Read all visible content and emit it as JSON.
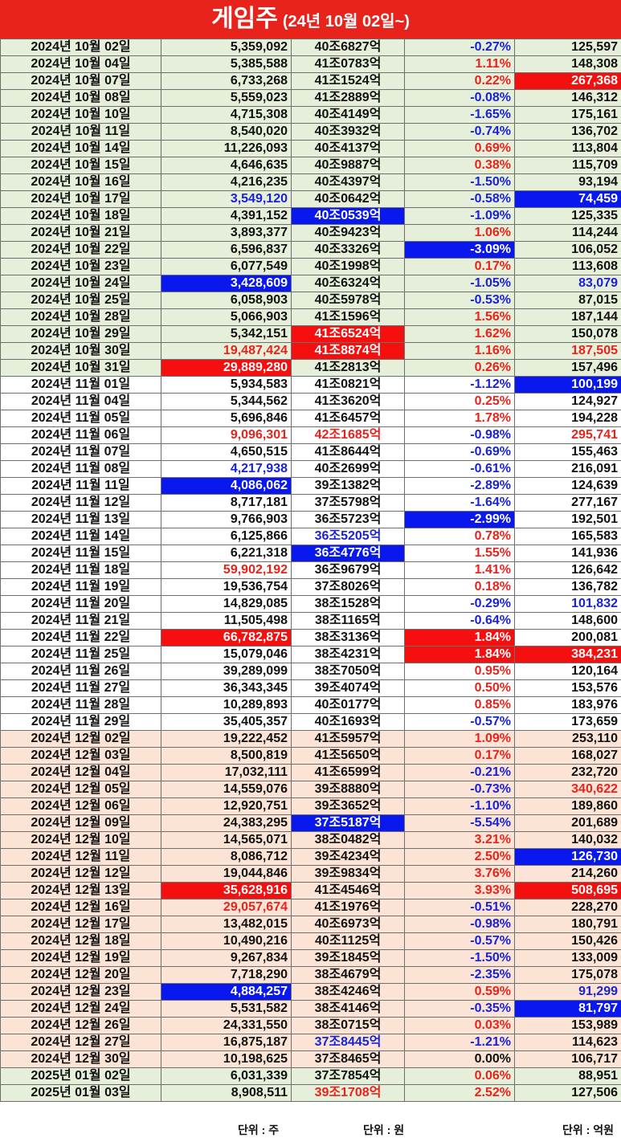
{
  "title": {
    "main": "게임주",
    "sub": "(24년 10월 02일~)"
  },
  "units": {
    "volume": "단위 : 주",
    "cap": "단위 : 원",
    "value": "단위 : 억원"
  },
  "colors": {
    "red": "#e8231c",
    "blue": "#1a22d6",
    "green_bg": "#e6efda",
    "peach_bg": "#fbe4d5"
  },
  "rows": [
    {
      "date": "2024년 10월 02일",
      "vol": "5,359,092",
      "cap": "40조6827억",
      "chg": "-0.27%",
      "val": "125,597",
      "group": "g-green",
      "vc": "",
      "cc": "",
      "pc": "blue-text",
      "tc": ""
    },
    {
      "date": "2024년 10월 04일",
      "vol": "5,385,588",
      "cap": "41조0783억",
      "chg": "1.11%",
      "val": "148,308",
      "group": "g-green",
      "vc": "",
      "cc": "",
      "pc": "red-text",
      "tc": ""
    },
    {
      "date": "2024년 10월 07일",
      "vol": "6,733,268",
      "cap": "41조1524억",
      "chg": "0.22%",
      "val": "267,368",
      "group": "g-green",
      "vc": "",
      "cc": "",
      "pc": "red-text",
      "tc": "hl-red"
    },
    {
      "date": "2024년 10월 08일",
      "vol": "5,559,023",
      "cap": "41조2889억",
      "chg": "-0.08%",
      "val": "146,312",
      "group": "g-green",
      "vc": "",
      "cc": "",
      "pc": "blue-text",
      "tc": ""
    },
    {
      "date": "2024년 10월 10일",
      "vol": "4,715,308",
      "cap": "40조4149억",
      "chg": "-1.65%",
      "val": "175,161",
      "group": "g-green",
      "vc": "",
      "cc": "",
      "pc": "blue-text",
      "tc": ""
    },
    {
      "date": "2024년 10월 11일",
      "vol": "8,540,020",
      "cap": "40조3932억",
      "chg": "-0.74%",
      "val": "136,702",
      "group": "g-green",
      "vc": "",
      "cc": "",
      "pc": "blue-text",
      "tc": ""
    },
    {
      "date": "2024년 10월 14일",
      "vol": "11,226,093",
      "cap": "40조4137억",
      "chg": "0.69%",
      "val": "113,804",
      "group": "g-green",
      "vc": "",
      "cc": "",
      "pc": "red-text",
      "tc": ""
    },
    {
      "date": "2024년 10월 15일",
      "vol": "4,646,635",
      "cap": "40조9887억",
      "chg": "0.38%",
      "val": "115,709",
      "group": "g-green",
      "vc": "",
      "cc": "",
      "pc": "red-text",
      "tc": ""
    },
    {
      "date": "2024년 10월 16일",
      "vol": "4,216,235",
      "cap": "40조4397억",
      "chg": "-1.50%",
      "val": "93,194",
      "group": "g-green",
      "vc": "",
      "cc": "",
      "pc": "blue-text",
      "tc": ""
    },
    {
      "date": "2024년 10월 17일",
      "vol": "3,549,120",
      "cap": "40조0642억",
      "chg": "-0.58%",
      "val": "74,459",
      "group": "g-green",
      "vc": "blue-text",
      "cc": "",
      "pc": "blue-text",
      "tc": "hl-blue"
    },
    {
      "date": "2024년 10월 18일",
      "vol": "4,391,152",
      "cap": "40조0539억",
      "chg": "-1.09%",
      "val": "125,335",
      "group": "g-green",
      "vc": "",
      "cc": "hl-blue",
      "pc": "blue-text",
      "tc": ""
    },
    {
      "date": "2024년 10월 21일",
      "vol": "3,893,377",
      "cap": "40조9423억",
      "chg": "1.06%",
      "val": "114,244",
      "group": "g-green",
      "vc": "",
      "cc": "",
      "pc": "red-text",
      "tc": ""
    },
    {
      "date": "2024년 10월 22일",
      "vol": "6,596,837",
      "cap": "40조3326억",
      "chg": "-3.09%",
      "val": "106,052",
      "group": "g-green",
      "vc": "",
      "cc": "",
      "pc": "hl-blue",
      "tc": ""
    },
    {
      "date": "2024년 10월 23일",
      "vol": "6,077,549",
      "cap": "40조1998억",
      "chg": "0.17%",
      "val": "113,608",
      "group": "g-green",
      "vc": "",
      "cc": "",
      "pc": "red-text",
      "tc": ""
    },
    {
      "date": "2024년 10월 24일",
      "vol": "3,428,609",
      "cap": "40조6324억",
      "chg": "-1.05%",
      "val": "83,079",
      "group": "g-green",
      "vc": "hl-blue",
      "cc": "",
      "pc": "blue-text",
      "tc": "blue-text"
    },
    {
      "date": "2024년 10월 25일",
      "vol": "6,058,903",
      "cap": "40조5978억",
      "chg": "-0.53%",
      "val": "87,015",
      "group": "g-green",
      "vc": "",
      "cc": "",
      "pc": "blue-text",
      "tc": ""
    },
    {
      "date": "2024년 10월 28일",
      "vol": "5,066,903",
      "cap": "41조1596억",
      "chg": "1.56%",
      "val": "187,144",
      "group": "g-green",
      "vc": "",
      "cc": "",
      "pc": "red-text",
      "tc": ""
    },
    {
      "date": "2024년 10월 29일",
      "vol": "5,342,151",
      "cap": "41조6524억",
      "chg": "1.62%",
      "val": "150,078",
      "group": "g-green",
      "vc": "",
      "cc": "hl-red",
      "pc": "red-text",
      "tc": ""
    },
    {
      "date": "2024년 10월 30일",
      "vol": "19,487,424",
      "cap": "41조8874억",
      "chg": "1.16%",
      "val": "187,505",
      "group": "g-green",
      "vc": "red-text",
      "cc": "hl-red",
      "pc": "red-text",
      "tc": "red-text"
    },
    {
      "date": "2024년 10월 31일",
      "vol": "29,889,280",
      "cap": "41조2813억",
      "chg": "0.26%",
      "val": "157,496",
      "group": "g-green",
      "vc": "hl-red",
      "cc": "",
      "pc": "red-text",
      "tc": ""
    },
    {
      "date": "2024년 11월 01일",
      "vol": "5,934,583",
      "cap": "41조0821억",
      "chg": "-1.12%",
      "val": "100,199",
      "group": "g-white",
      "vc": "",
      "cc": "",
      "pc": "blue-text",
      "tc": "hl-blue"
    },
    {
      "date": "2024년 11월 04일",
      "vol": "5,344,562",
      "cap": "41조3620억",
      "chg": "0.25%",
      "val": "124,927",
      "group": "g-white",
      "vc": "",
      "cc": "",
      "pc": "red-text",
      "tc": ""
    },
    {
      "date": "2024년 11월 05일",
      "vol": "5,696,846",
      "cap": "41조6457억",
      "chg": "1.78%",
      "val": "194,228",
      "group": "g-white",
      "vc": "",
      "cc": "",
      "pc": "red-text",
      "tc": ""
    },
    {
      "date": "2024년 11월 06일",
      "vol": "9,096,301",
      "cap": "42조1685억",
      "chg": "-0.98%",
      "val": "295,741",
      "group": "g-white",
      "vc": "red-text",
      "cc": "red-text",
      "pc": "blue-text",
      "tc": "red-text"
    },
    {
      "date": "2024년 11월 07일",
      "vol": "4,650,515",
      "cap": "41조8644억",
      "chg": "-0.69%",
      "val": "155,463",
      "group": "g-white",
      "vc": "",
      "cc": "",
      "pc": "blue-text",
      "tc": ""
    },
    {
      "date": "2024년 11월 08일",
      "vol": "4,217,938",
      "cap": "40조2699억",
      "chg": "-0.61%",
      "val": "216,091",
      "group": "g-white",
      "vc": "blue-text",
      "cc": "",
      "pc": "blue-text",
      "tc": ""
    },
    {
      "date": "2024년 11월 11일",
      "vol": "4,086,062",
      "cap": "39조1382억",
      "chg": "-2.89%",
      "val": "124,639",
      "group": "g-white",
      "vc": "hl-blue",
      "cc": "",
      "pc": "blue-text",
      "tc": ""
    },
    {
      "date": "2024년 11월 12일",
      "vol": "8,717,181",
      "cap": "37조5798억",
      "chg": "-1.64%",
      "val": "277,167",
      "group": "g-white",
      "vc": "",
      "cc": "",
      "pc": "blue-text",
      "tc": ""
    },
    {
      "date": "2024년 11월 13일",
      "vol": "9,766,903",
      "cap": "36조5723억",
      "chg": "-2.99%",
      "val": "192,501",
      "group": "g-white",
      "vc": "",
      "cc": "",
      "pc": "hl-blue",
      "tc": ""
    },
    {
      "date": "2024년 11월 14일",
      "vol": "6,125,866",
      "cap": "36조5205억",
      "chg": "0.78%",
      "val": "165,583",
      "group": "g-white",
      "vc": "",
      "cc": "blue-text",
      "pc": "red-text",
      "tc": ""
    },
    {
      "date": "2024년 11월 15일",
      "vol": "6,221,318",
      "cap": "36조4776억",
      "chg": "1.55%",
      "val": "141,936",
      "group": "g-white",
      "vc": "",
      "cc": "hl-blue",
      "pc": "red-text",
      "tc": ""
    },
    {
      "date": "2024년 11월 18일",
      "vol": "59,902,192",
      "cap": "36조9679억",
      "chg": "1.41%",
      "val": "126,642",
      "group": "g-white",
      "vc": "red-text",
      "cc": "",
      "pc": "red-text",
      "tc": ""
    },
    {
      "date": "2024년 11월 19일",
      "vol": "19,536,754",
      "cap": "37조8026억",
      "chg": "0.18%",
      "val": "136,782",
      "group": "g-white",
      "vc": "",
      "cc": "",
      "pc": "red-text",
      "tc": ""
    },
    {
      "date": "2024년 11월 20일",
      "vol": "14,829,085",
      "cap": "38조1528억",
      "chg": "-0.29%",
      "val": "101,832",
      "group": "g-white",
      "vc": "",
      "cc": "",
      "pc": "blue-text",
      "tc": "blue-text"
    },
    {
      "date": "2024년 11월 21일",
      "vol": "11,505,498",
      "cap": "38조1165억",
      "chg": "-0.64%",
      "val": "148,600",
      "group": "g-white",
      "vc": "",
      "cc": "",
      "pc": "blue-text",
      "tc": ""
    },
    {
      "date": "2024년 11월 22일",
      "vol": "66,782,875",
      "cap": "38조3136억",
      "chg": "1.84%",
      "val": "200,081",
      "group": "g-white",
      "vc": "hl-red",
      "cc": "",
      "pc": "hl-red",
      "tc": ""
    },
    {
      "date": "2024년 11월 25일",
      "vol": "15,079,046",
      "cap": "38조4231억",
      "chg": "1.84%",
      "val": "384,231",
      "group": "g-white",
      "vc": "",
      "cc": "",
      "pc": "hl-red",
      "tc": "hl-red"
    },
    {
      "date": "2024년 11월 26일",
      "vol": "39,289,099",
      "cap": "38조7050억",
      "chg": "0.95%",
      "val": "120,164",
      "group": "g-white",
      "vc": "",
      "cc": "",
      "pc": "red-text",
      "tc": ""
    },
    {
      "date": "2024년 11월 27일",
      "vol": "36,343,345",
      "cap": "39조4074억",
      "chg": "0.50%",
      "val": "153,576",
      "group": "g-white",
      "vc": "",
      "cc": "",
      "pc": "red-text",
      "tc": ""
    },
    {
      "date": "2024년 11월 28일",
      "vol": "10,289,893",
      "cap": "40조0177억",
      "chg": "0.85%",
      "val": "183,976",
      "group": "g-white",
      "vc": "",
      "cc": "",
      "pc": "red-text",
      "tc": ""
    },
    {
      "date": "2024년 11월 29일",
      "vol": "35,405,357",
      "cap": "40조1693억",
      "chg": "-0.57%",
      "val": "173,659",
      "group": "g-white",
      "vc": "",
      "cc": "",
      "pc": "blue-text",
      "tc": ""
    },
    {
      "date": "2024년 12월 02일",
      "vol": "19,222,452",
      "cap": "41조5957억",
      "chg": "1.09%",
      "val": "253,110",
      "group": "g-peach",
      "vc": "",
      "cc": "",
      "pc": "red-text",
      "tc": ""
    },
    {
      "date": "2024년 12월 03일",
      "vol": "8,500,819",
      "cap": "41조5650억",
      "chg": "0.17%",
      "val": "168,027",
      "group": "g-peach",
      "vc": "",
      "cc": "",
      "pc": "red-text",
      "tc": ""
    },
    {
      "date": "2024년 12월 04일",
      "vol": "17,032,111",
      "cap": "41조6599억",
      "chg": "-0.21%",
      "val": "232,720",
      "group": "g-peach",
      "vc": "",
      "cc": "",
      "pc": "blue-text",
      "tc": ""
    },
    {
      "date": "2024년 12월 05일",
      "vol": "14,559,076",
      "cap": "39조8880억",
      "chg": "-0.73%",
      "val": "340,622",
      "group": "g-peach",
      "vc": "",
      "cc": "",
      "pc": "blue-text",
      "tc": "red-text"
    },
    {
      "date": "2024년 12월 06일",
      "vol": "12,920,751",
      "cap": "39조3652억",
      "chg": "-1.10%",
      "val": "189,860",
      "group": "g-peach",
      "vc": "",
      "cc": "",
      "pc": "blue-text",
      "tc": ""
    },
    {
      "date": "2024년 12월 09일",
      "vol": "24,383,295",
      "cap": "37조5187억",
      "chg": "-5.54%",
      "val": "201,689",
      "group": "g-peach",
      "vc": "",
      "cc": "hl-blue",
      "pc": "blue-text",
      "tc": ""
    },
    {
      "date": "2024년 12월 10일",
      "vol": "14,565,071",
      "cap": "38조0482억",
      "chg": "3.21%",
      "val": "140,032",
      "group": "g-peach",
      "vc": "",
      "cc": "",
      "pc": "red-text",
      "tc": ""
    },
    {
      "date": "2024년 12월 11일",
      "vol": "8,086,712",
      "cap": "39조4234억",
      "chg": "2.50%",
      "val": "126,730",
      "group": "g-peach",
      "vc": "",
      "cc": "",
      "pc": "red-text",
      "tc": "hl-blue"
    },
    {
      "date": "2024년 12월 12일",
      "vol": "19,044,846",
      "cap": "39조9834억",
      "chg": "3.76%",
      "val": "214,260",
      "group": "g-peach",
      "vc": "",
      "cc": "",
      "pc": "red-text",
      "tc": ""
    },
    {
      "date": "2024년 12월 13일",
      "vol": "35,628,916",
      "cap": "41조4546억",
      "chg": "3.93%",
      "val": "508,695",
      "group": "g-peach",
      "vc": "hl-red",
      "cc": "",
      "pc": "red-text",
      "tc": "hl-red"
    },
    {
      "date": "2024년 12월 16일",
      "vol": "29,057,674",
      "cap": "41조1976억",
      "chg": "-0.51%",
      "val": "228,270",
      "group": "g-peach",
      "vc": "red-text",
      "cc": "",
      "pc": "blue-text",
      "tc": ""
    },
    {
      "date": "2024년 12월 17일",
      "vol": "13,482,015",
      "cap": "40조6973억",
      "chg": "-0.98%",
      "val": "180,791",
      "group": "g-peach",
      "vc": "",
      "cc": "",
      "pc": "blue-text",
      "tc": ""
    },
    {
      "date": "2024년 12월 18일",
      "vol": "10,490,216",
      "cap": "40조1125억",
      "chg": "-0.57%",
      "val": "150,426",
      "group": "g-peach",
      "vc": "",
      "cc": "",
      "pc": "blue-text",
      "tc": ""
    },
    {
      "date": "2024년 12월 19일",
      "vol": "9,267,834",
      "cap": "39조1845억",
      "chg": "-1.50%",
      "val": "133,009",
      "group": "g-peach",
      "vc": "",
      "cc": "",
      "pc": "blue-text",
      "tc": ""
    },
    {
      "date": "2024년 12월 20일",
      "vol": "7,718,290",
      "cap": "38조4679억",
      "chg": "-2.35%",
      "val": "175,078",
      "group": "g-peach",
      "vc": "",
      "cc": "",
      "pc": "blue-text",
      "tc": ""
    },
    {
      "date": "2024년 12월 23일",
      "vol": "4,884,257",
      "cap": "38조4246억",
      "chg": "0.59%",
      "val": "91,299",
      "group": "g-peach",
      "vc": "hl-blue",
      "cc": "",
      "pc": "red-text",
      "tc": "blue-text"
    },
    {
      "date": "2024년 12월 24일",
      "vol": "5,531,582",
      "cap": "38조4146억",
      "chg": "-0.35%",
      "val": "81,797",
      "group": "g-peach",
      "vc": "",
      "cc": "",
      "pc": "blue-text",
      "tc": "hl-blue"
    },
    {
      "date": "2024년 12월 26일",
      "vol": "24,331,550",
      "cap": "38조0715억",
      "chg": "0.03%",
      "val": "153,989",
      "group": "g-peach",
      "vc": "",
      "cc": "",
      "pc": "red-text",
      "tc": ""
    },
    {
      "date": "2024년 12월 27일",
      "vol": "16,875,187",
      "cap": "37조8445억",
      "chg": "-1.21%",
      "val": "114,623",
      "group": "g-peach",
      "vc": "",
      "cc": "blue-text",
      "pc": "blue-text",
      "tc": ""
    },
    {
      "date": "2024년 12월 30일",
      "vol": "10,198,625",
      "cap": "37조8465억",
      "chg": "0.00%",
      "val": "106,717",
      "group": "g-peach",
      "vc": "",
      "cc": "",
      "pc": "",
      "tc": ""
    },
    {
      "date": "2025년 01월 02일",
      "vol": "6,031,339",
      "cap": "37조7854억",
      "chg": "0.06%",
      "val": "88,951",
      "group": "g-green",
      "vc": "",
      "cc": "",
      "pc": "red-text",
      "tc": ""
    },
    {
      "date": "2025년 01월 03일",
      "vol": "8,908,511",
      "cap": "39조1708억",
      "chg": "2.52%",
      "val": "127,506",
      "group": "g-green lastrow",
      "vc": "",
      "cc": "red-text",
      "pc": "red-text",
      "tc": ""
    }
  ]
}
